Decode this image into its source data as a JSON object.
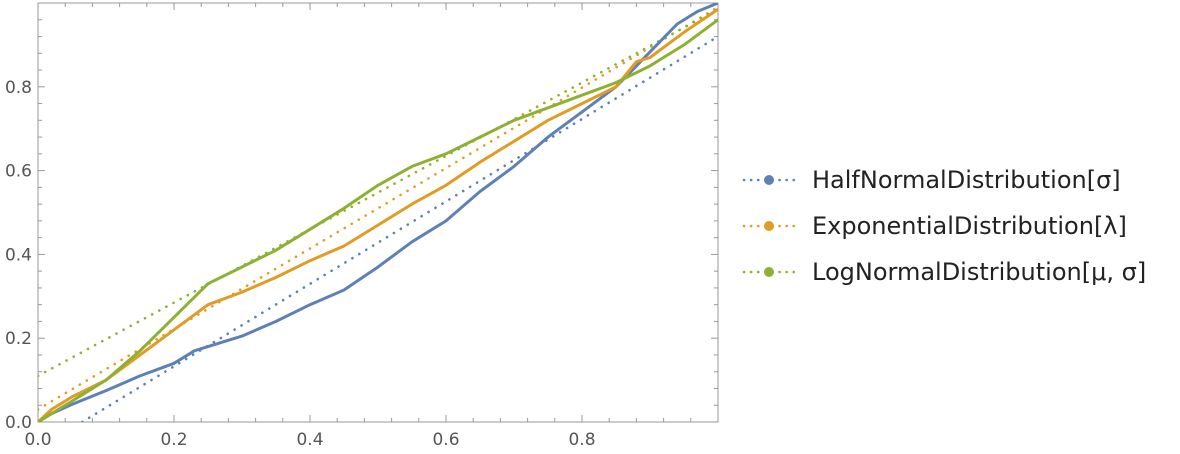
{
  "chart_data": {
    "type": "line",
    "title": "",
    "xlabel": "",
    "ylabel": "",
    "xlim": [
      0,
      1
    ],
    "ylim": [
      0,
      1
    ],
    "x_ticks": [
      "0.0",
      "0.2",
      "0.4",
      "0.6",
      "0.8"
    ],
    "y_ticks": [
      "0.0",
      "0.2",
      "0.4",
      "0.6",
      "0.8"
    ],
    "grid": false,
    "legend_position": "right",
    "series": [
      {
        "name": "HalfNormalDistribution[σ]",
        "color": "#5E81B5",
        "empirical": [
          [
            0,
            0
          ],
          [
            0.02,
            0.02
          ],
          [
            0.05,
            0.042
          ],
          [
            0.1,
            0.075
          ],
          [
            0.15,
            0.11
          ],
          [
            0.2,
            0.14
          ],
          [
            0.23,
            0.17
          ],
          [
            0.25,
            0.18
          ],
          [
            0.3,
            0.205
          ],
          [
            0.35,
            0.24
          ],
          [
            0.4,
            0.28
          ],
          [
            0.45,
            0.315
          ],
          [
            0.5,
            0.37
          ],
          [
            0.55,
            0.43
          ],
          [
            0.6,
            0.48
          ],
          [
            0.65,
            0.55
          ],
          [
            0.7,
            0.61
          ],
          [
            0.75,
            0.68
          ],
          [
            0.8,
            0.74
          ],
          [
            0.85,
            0.8
          ],
          [
            0.88,
            0.85
          ],
          [
            0.91,
            0.9
          ],
          [
            0.94,
            0.95
          ],
          [
            0.97,
            0.98
          ],
          [
            1.0,
            1.0
          ]
        ],
        "reference": [
          [
            0.065,
            0
          ],
          [
            1.0,
            0.92
          ]
        ]
      },
      {
        "name": "ExponentialDistribution[λ]",
        "color": "#E19C24",
        "empirical": [
          [
            0,
            0
          ],
          [
            0.02,
            0.03
          ],
          [
            0.05,
            0.06
          ],
          [
            0.1,
            0.1
          ],
          [
            0.15,
            0.16
          ],
          [
            0.2,
            0.22
          ],
          [
            0.25,
            0.28
          ],
          [
            0.3,
            0.31
          ],
          [
            0.35,
            0.345
          ],
          [
            0.4,
            0.385
          ],
          [
            0.45,
            0.42
          ],
          [
            0.5,
            0.47
          ],
          [
            0.55,
            0.52
          ],
          [
            0.6,
            0.565
          ],
          [
            0.65,
            0.62
          ],
          [
            0.7,
            0.67
          ],
          [
            0.75,
            0.72
          ],
          [
            0.8,
            0.76
          ],
          [
            0.85,
            0.8
          ],
          [
            0.88,
            0.86
          ],
          [
            0.9,
            0.87
          ],
          [
            0.95,
            0.93
          ],
          [
            1.0,
            0.985
          ]
        ],
        "reference": [
          [
            0,
            0.03
          ],
          [
            1.0,
            0.99
          ]
        ]
      },
      {
        "name": "LogNormalDistribution[μ, σ]",
        "color": "#8FB032",
        "empirical": [
          [
            0,
            0
          ],
          [
            0.03,
            0.03
          ],
          [
            0.05,
            0.05
          ],
          [
            0.1,
            0.1
          ],
          [
            0.15,
            0.17
          ],
          [
            0.2,
            0.25
          ],
          [
            0.25,
            0.33
          ],
          [
            0.3,
            0.37
          ],
          [
            0.35,
            0.41
          ],
          [
            0.4,
            0.46
          ],
          [
            0.45,
            0.51
          ],
          [
            0.5,
            0.565
          ],
          [
            0.55,
            0.61
          ],
          [
            0.6,
            0.64
          ],
          [
            0.65,
            0.68
          ],
          [
            0.7,
            0.72
          ],
          [
            0.75,
            0.75
          ],
          [
            0.8,
            0.78
          ],
          [
            0.85,
            0.81
          ],
          [
            0.9,
            0.85
          ],
          [
            0.95,
            0.9
          ],
          [
            1.0,
            0.96
          ]
        ],
        "reference": [
          [
            0,
            0.11
          ],
          [
            1.0,
            0.985
          ]
        ]
      }
    ]
  }
}
